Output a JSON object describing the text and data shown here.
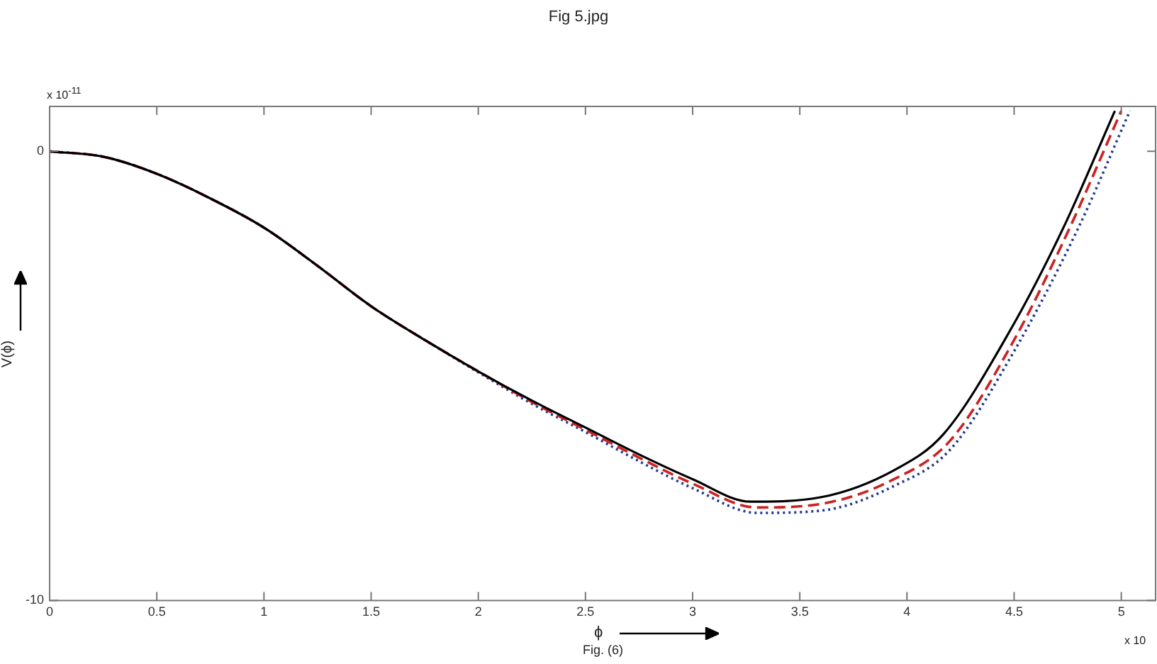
{
  "chart_data": {
    "type": "line",
    "title": "Fig 5.jpg",
    "xlabel": "ϕ",
    "ylabel": "V(ϕ)",
    "annotations": [
      "Fig. (6)",
      "x 10$^{-11}$",
      "x 10"
    ],
    "xlim": [
      0,
      5.16
    ],
    "xticks": [
      0,
      0.5,
      1,
      1.5,
      2,
      2.5,
      3,
      3.5,
      4,
      4.5,
      5
    ],
    "ylim": [
      -10,
      1
    ],
    "yticks": [
      -10,
      0
    ],
    "grid": false,
    "marker": "none",
    "series": [
      {
        "color": "#000000",
        "line_style": "solid",
        "x": [
          0,
          0.25,
          0.5,
          0.75,
          1,
          1.25,
          1.5,
          1.75,
          2,
          2.25,
          2.5,
          2.75,
          3,
          3.27,
          3.6,
          3.94,
          4.17,
          4.48,
          4.73,
          4.97
        ],
        "values": [
          0,
          -0.12,
          -0.5,
          -1.05,
          -1.7,
          -2.55,
          -3.45,
          -4.2,
          -4.9,
          -5.55,
          -6.15,
          -6.75,
          -7.3,
          -7.8,
          -7.7,
          -7.1,
          -6.3,
          -4.0,
          -1.7,
          0.9
        ]
      },
      {
        "color": "#cc2222",
        "line_style": "dashed",
        "x": [
          0,
          0.25,
          0.5,
          0.75,
          1,
          1.25,
          1.5,
          1.75,
          2,
          2.25,
          2.5,
          2.75,
          3,
          3.3,
          3.6,
          3.94,
          4.2,
          4.5,
          4.75,
          5
        ],
        "values": [
          0,
          -0.12,
          -0.5,
          -1.05,
          -1.7,
          -2.55,
          -3.45,
          -4.2,
          -4.9,
          -5.58,
          -6.2,
          -6.82,
          -7.4,
          -7.93,
          -7.85,
          -7.3,
          -6.45,
          -4.2,
          -1.8,
          0.9
        ]
      },
      {
        "color": "#1f3a93",
        "line_style": "dotted",
        "x": [
          0,
          0.25,
          0.5,
          0.75,
          1,
          1.25,
          1.5,
          1.75,
          2,
          2.25,
          2.5,
          2.75,
          3,
          3.3,
          3.6,
          3.94,
          4.2,
          4.5,
          4.8,
          5.04
        ],
        "values": [
          0,
          -0.12,
          -0.5,
          -1.05,
          -1.7,
          -2.55,
          -3.45,
          -4.2,
          -4.92,
          -5.62,
          -6.25,
          -6.9,
          -7.5,
          -8.05,
          -8.0,
          -7.45,
          -6.65,
          -4.45,
          -1.7,
          0.9
        ]
      }
    ]
  }
}
